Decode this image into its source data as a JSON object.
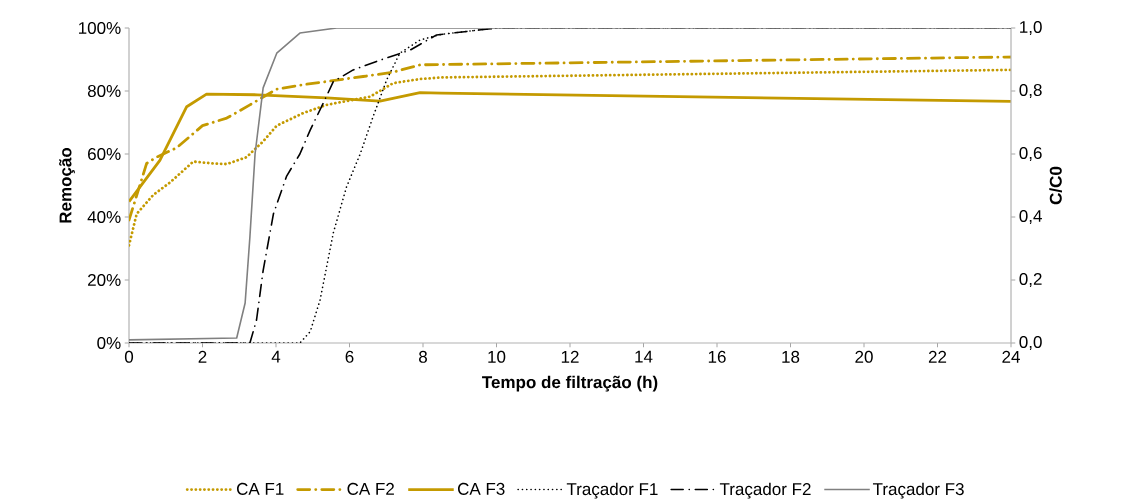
{
  "chart_data": {
    "type": "line",
    "xlabel": "Tempo de filtração  (h)",
    "ylabel": "Remoção",
    "y2label": "C/C0",
    "xlim": [
      0,
      24
    ],
    "xticks": [
      0,
      2,
      4,
      6,
      8,
      10,
      12,
      14,
      16,
      18,
      20,
      22,
      24
    ],
    "ylim": [
      0,
      100
    ],
    "yticks": [
      {
        "value": 0,
        "label": "0%"
      },
      {
        "value": 20,
        "label": "20%"
      },
      {
        "value": 40,
        "label": "40%"
      },
      {
        "value": 60,
        "label": "60%"
      },
      {
        "value": 80,
        "label": "80%"
      },
      {
        "value": 100,
        "label": "100%"
      }
    ],
    "y2lim": [
      0,
      1
    ],
    "y2ticks": [
      {
        "value": 0,
        "label": "0,0"
      },
      {
        "value": 0.2,
        "label": "0,2"
      },
      {
        "value": 0.4,
        "label": "0,4"
      },
      {
        "value": 0.6,
        "label": "0,6"
      },
      {
        "value": 0.8,
        "label": "0,8"
      },
      {
        "value": 1,
        "label": "1,0"
      }
    ],
    "legend": "bottom",
    "series": [
      {
        "name": "CA F1",
        "color": "#c49a00",
        "line_style": "dotted",
        "x": [
          0,
          0.21,
          0.66,
          1.12,
          1.75,
          2.29,
          2.66,
          3.2,
          3.65,
          4.02,
          4.74,
          5.38,
          6.56,
          7.19,
          7.92,
          8.5,
          24
        ],
        "values": [
          31,
          41,
          47,
          51,
          57.6,
          57,
          56.8,
          59,
          64,
          69,
          73,
          75.6,
          78.2,
          82.5,
          83.8,
          84.3,
          86.7
        ]
      },
      {
        "name": "CA F2",
        "color": "#c49a00",
        "line_style": "dashdot",
        "x": [
          0,
          0.48,
          0.75,
          1.3,
          2.0,
          2.66,
          3.29,
          4.02,
          4.74,
          6.37,
          7.19,
          7.92,
          8.5,
          24
        ],
        "values": [
          39,
          57,
          59,
          62,
          69,
          71.4,
          75.6,
          80.6,
          82,
          84.6,
          86,
          88.3,
          88.4,
          90.8
        ]
      },
      {
        "name": "CA F3",
        "color": "#c49a00",
        "line_style": "solid",
        "x": [
          0,
          0.84,
          1.57,
          2.11,
          3.5,
          5.38,
          6.83,
          7.92,
          8.5,
          24
        ],
        "values": [
          44.9,
          58,
          75,
          79,
          78.8,
          77.8,
          76.8,
          79.5,
          79.3,
          76.7
        ]
      },
      {
        "name": "Traçador F1",
        "color": "#000000",
        "line_style": "dotted",
        "axis": "y2",
        "x": [
          0,
          4.65,
          4.93,
          5.2,
          5.56,
          5.92,
          6.29,
          6.64,
          7.01,
          7.37,
          7.92,
          8.5,
          10,
          24
        ],
        "values": [
          0,
          0,
          0.036,
          0.137,
          0.35,
          0.496,
          0.6,
          0.718,
          0.835,
          0.92,
          0.962,
          0.98,
          1.0,
          1.0
        ]
      },
      {
        "name": "Traçador F2",
        "color": "#000000",
        "line_style": "dashdot",
        "axis": "y2",
        "x": [
          0,
          3.29,
          3.47,
          3.65,
          3.93,
          4.29,
          4.65,
          4.93,
          5.28,
          5.56,
          6.1,
          6.83,
          7.65,
          8.37,
          10,
          24
        ],
        "values": [
          0,
          0,
          0.073,
          0.23,
          0.41,
          0.53,
          0.6,
          0.676,
          0.76,
          0.83,
          0.867,
          0.898,
          0.93,
          0.978,
          1.0,
          1.0
        ]
      },
      {
        "name": "Traçador F3",
        "color": "#808080",
        "line_style": "solid",
        "axis": "y2",
        "x": [
          0,
          2.93,
          3.16,
          3.29,
          3.43,
          3.65,
          4.02,
          4.65,
          5.65,
          24
        ],
        "values": [
          0.01,
          0.016,
          0.127,
          0.337,
          0.6,
          0.81,
          0.92,
          0.984,
          1.0,
          1.0
        ]
      }
    ]
  }
}
